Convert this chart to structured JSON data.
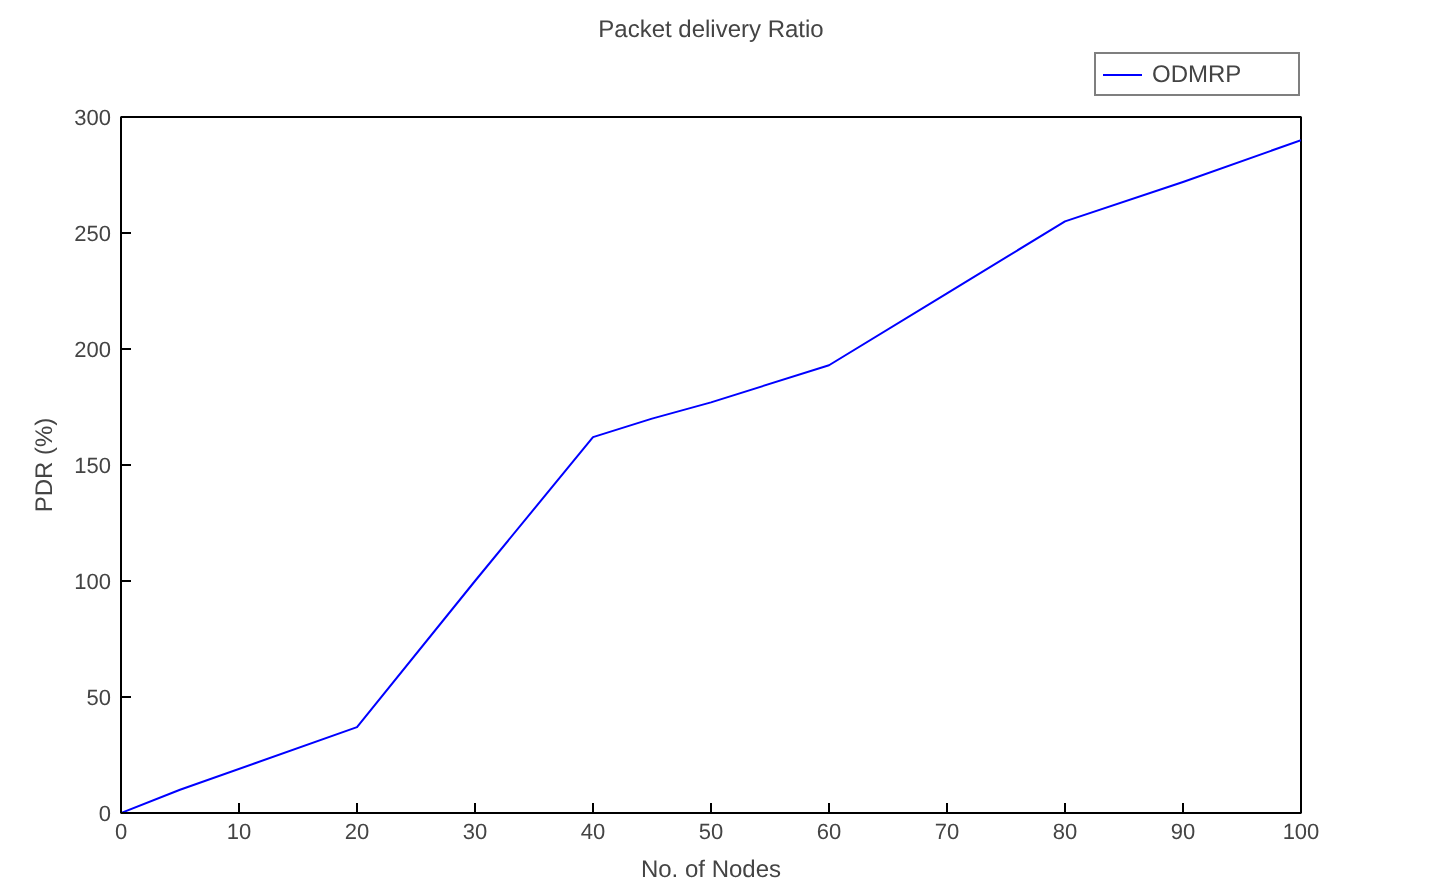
{
  "chart_data": {
    "type": "line",
    "title": "Packet delivery Ratio",
    "xlabel": "No. of Nodes",
    "ylabel": "PDR (%)",
    "x": [
      0,
      5,
      20,
      30,
      40,
      45,
      50,
      60,
      70,
      80,
      90,
      100
    ],
    "series": [
      {
        "name": "ODMRP",
        "color": "#0000ff",
        "values": [
          0,
          10,
          37,
          100,
          162,
          170,
          177,
          193,
          224,
          255,
          272,
          290
        ]
      }
    ],
    "xlim": [
      0,
      100
    ],
    "ylim": [
      0,
      300
    ],
    "xticks": [
      0,
      10,
      20,
      30,
      40,
      50,
      60,
      70,
      80,
      90,
      100
    ],
    "yticks": [
      0,
      50,
      100,
      150,
      200,
      250,
      300
    ],
    "grid": false,
    "legend": "top right",
    "marker": "none",
    "line_style": "solid"
  }
}
